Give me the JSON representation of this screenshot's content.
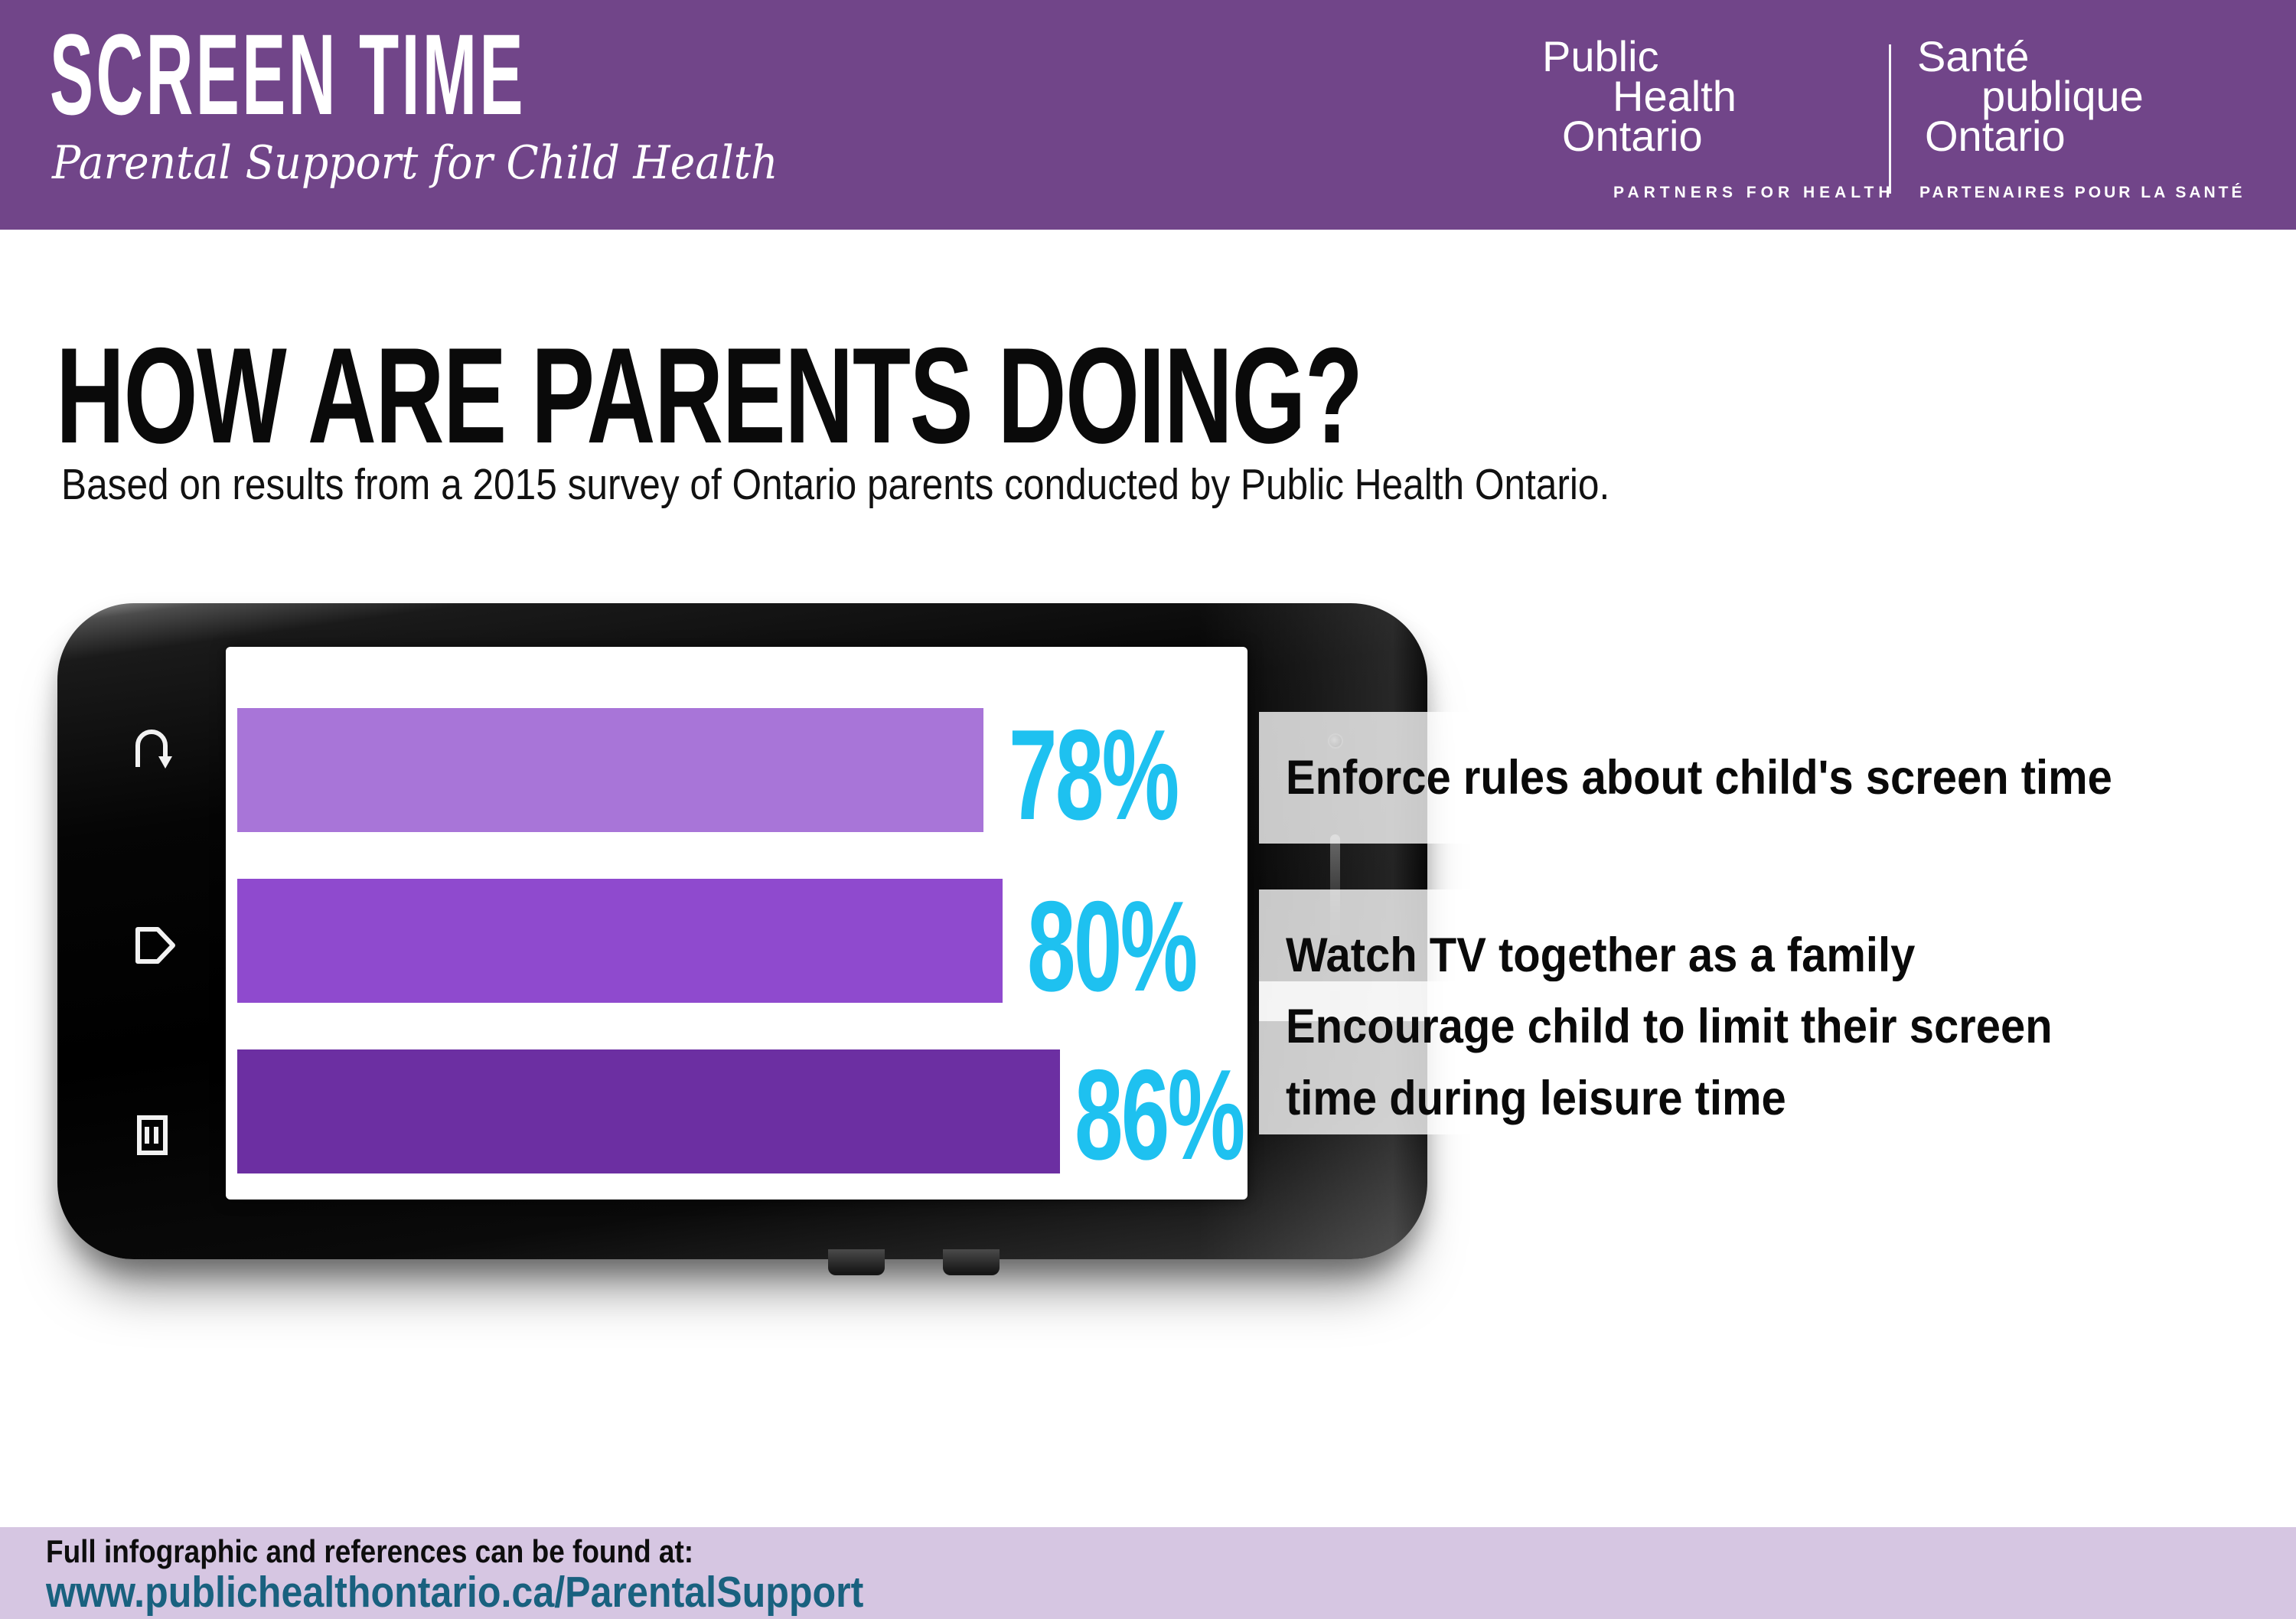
{
  "header": {
    "bg_color": "#714589",
    "title": "SCREEN TIME",
    "subtitle": "Parental Support for Child Health",
    "logo": {
      "en": {
        "line1": "Public",
        "line2": "Health",
        "line3": "Ontario",
        "tagline": "PARTNERS FOR HEALTH"
      },
      "fr": {
        "line1": "Santé",
        "line2": "publique",
        "line3": "Ontario",
        "tagline": "PARTENAIRES POUR LA SANTÉ"
      }
    }
  },
  "main": {
    "heading": "HOW ARE PARENTS DOING?",
    "subheading": "Based on results from a 2015 survey of Ontario parents conducted by Public Health Ontario."
  },
  "chart_data": {
    "type": "bar",
    "orientation": "horizontal",
    "title": "HOW ARE PARENTS DOING?",
    "subtitle": "Based on results from a 2015 survey of Ontario parents conducted by Public Health Ontario.",
    "categories": [
      "Enforce rules about child's screen time",
      "Watch TV together as a family",
      "Encourage child to limit their screen time during leisure time"
    ],
    "values": [
      78,
      80,
      86
    ],
    "value_labels": [
      "78%",
      "80%",
      "86%"
    ],
    "bar_colors": [
      "#a875d8",
      "#8f4ace",
      "#6c2fa2"
    ],
    "value_label_color": "#1ec1f0",
    "xlim": [
      0,
      100
    ],
    "grid": false,
    "legend": "none"
  },
  "phone": {
    "icons": [
      "back-icon",
      "home-icon",
      "recent-apps-icon"
    ],
    "bezel_color": "#000000",
    "screen_color": "#ffffff"
  },
  "footer": {
    "bg_color": "#d6c6e2",
    "note": "Full infographic and references can be found at:",
    "url": "www.publichealthontario.ca/ParentalSupport",
    "url_color": "#19617f"
  }
}
